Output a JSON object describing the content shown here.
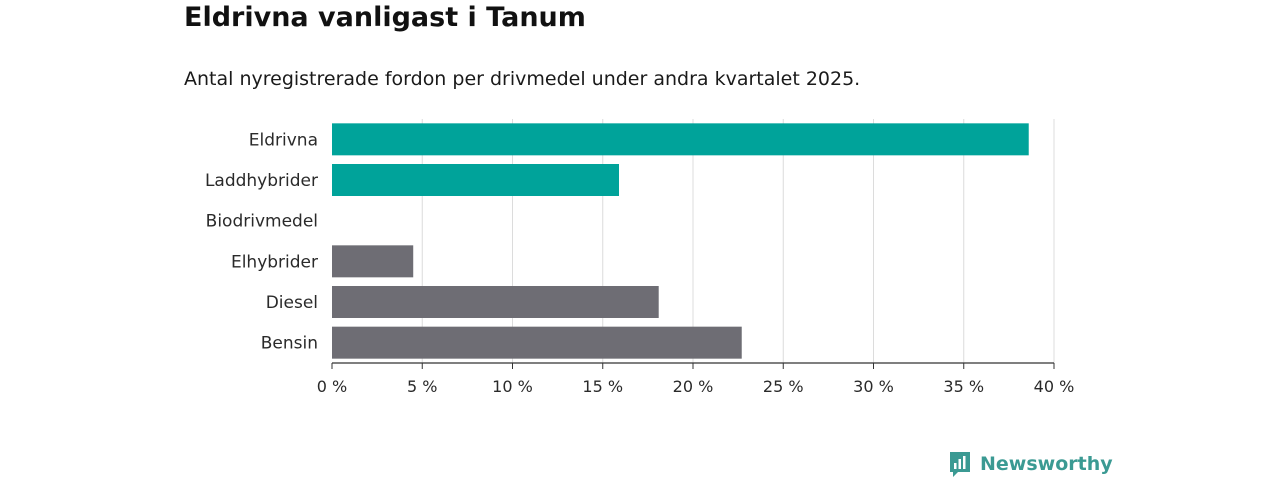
{
  "chart_data": {
    "type": "bar",
    "orientation": "horizontal",
    "title": "Eldrivna vanligast i Tanum",
    "subtitle": "Antal nyregistrerade fordon per drivmedel under andra kvartalet 2025.",
    "categories": [
      "Eldrivna",
      "Laddhybrider",
      "Biodrivmedel",
      "Elhybrider",
      "Diesel",
      "Bensin"
    ],
    "values": [
      38.6,
      15.9,
      0,
      4.5,
      18.1,
      22.7
    ],
    "bar_colors": [
      "#00a39a",
      "#00a39a",
      "#6e6d74",
      "#6e6d74",
      "#6e6d74",
      "#6e6d74"
    ],
    "xlim": [
      0,
      40
    ],
    "x_ticks": [
      0,
      5,
      10,
      15,
      20,
      25,
      30,
      35,
      40
    ],
    "x_tick_labels": [
      "0 %",
      "5 %",
      "10 %",
      "15 %",
      "20 %",
      "25 %",
      "30 %",
      "35 %",
      "40 %"
    ],
    "grid": "vertical",
    "legend": "none"
  },
  "brand": {
    "name": "Newsworthy",
    "icon": "newsworthy-logo-icon",
    "color": "#3b9a93"
  }
}
